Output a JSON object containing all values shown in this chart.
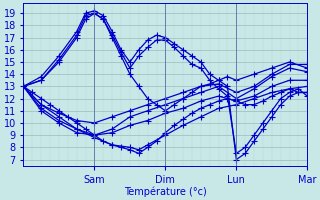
{
  "xlabel": "Température (°c)",
  "yticks": [
    7,
    8,
    9,
    10,
    11,
    12,
    13,
    14,
    15,
    16,
    17,
    18,
    19
  ],
  "ylim": [
    6.5,
    19.8
  ],
  "xlim": [
    0,
    96
  ],
  "x_tick_positions": [
    24,
    48,
    72,
    96
  ],
  "x_tick_labels": [
    "Sam",
    "Dim",
    "Lun",
    "Mar"
  ],
  "bg_color": "#c8e8e8",
  "grid_color_minor": "#b8d0d0",
  "grid_color_major": "#a0b8b8",
  "line_color": "#0000cc",
  "marker": "+",
  "markersize": 4,
  "linewidth": 0.9,
  "curves": [
    [
      0,
      13,
      3,
      12.5,
      6,
      12,
      9,
      11.5,
      12,
      11,
      15,
      10.5,
      18,
      10,
      21,
      9.5,
      24,
      9,
      27,
      8.5,
      30,
      8.2,
      33,
      8.0,
      36,
      7.8,
      39,
      7.5,
      42,
      8.0,
      45,
      8.5,
      48,
      9.2,
      51,
      9.8,
      54,
      10.3,
      57,
      10.8,
      60,
      11.2,
      63,
      11.5,
      66,
      11.8,
      69,
      12.0,
      72,
      11.8,
      75,
      11.5,
      78,
      11.5,
      81,
      11.8,
      84,
      12.2,
      87,
      12.5,
      90,
      12.8,
      93,
      12.5,
      96,
      12.5
    ],
    [
      0,
      13,
      6,
      11.5,
      12,
      10.5,
      18,
      9.5,
      24,
      8.8,
      30,
      8.2,
      36,
      8.0,
      39,
      7.8,
      42,
      8.2,
      48,
      9.0,
      54,
      9.8,
      60,
      10.5,
      66,
      11.2,
      72,
      11.5,
      78,
      12.0,
      84,
      12.5,
      90,
      12.8,
      96,
      13.0
    ],
    [
      0,
      13,
      6,
      11.2,
      12,
      10.2,
      18,
      9.5,
      24,
      9.0,
      30,
      9.2,
      36,
      9.8,
      42,
      10.2,
      48,
      10.8,
      54,
      11.2,
      60,
      11.8,
      66,
      12.2,
      72,
      11.8,
      78,
      12.2,
      84,
      13.0,
      90,
      13.5,
      96,
      13.5
    ],
    [
      0,
      13,
      6,
      11.0,
      12,
      10.0,
      18,
      9.2,
      24,
      9.0,
      30,
      9.5,
      36,
      10.5,
      42,
      11.0,
      48,
      11.5,
      54,
      12.0,
      60,
      12.5,
      66,
      13.0,
      72,
      12.0,
      78,
      12.8,
      84,
      13.8,
      90,
      14.5,
      96,
      14.2
    ],
    [
      0,
      13,
      6,
      11.5,
      12,
      10.8,
      18,
      10.2,
      24,
      10.0,
      30,
      10.5,
      36,
      11.0,
      42,
      11.5,
      48,
      12.0,
      54,
      12.5,
      60,
      13.0,
      66,
      13.2,
      72,
      12.5,
      78,
      13.0,
      84,
      14.0,
      90,
      14.8,
      96,
      14.8
    ],
    [
      0,
      13,
      6,
      13.5,
      12,
      15.0,
      18,
      17.0,
      21,
      18.5,
      24,
      19.0,
      27,
      18.5,
      30,
      17.0,
      33,
      15.5,
      36,
      14.0,
      39,
      13.0,
      42,
      12.0,
      45,
      11.5,
      48,
      11.0,
      51,
      11.5,
      54,
      12.0,
      57,
      12.5,
      60,
      13.0,
      63,
      13.2,
      66,
      13.5,
      69,
      13.8,
      72,
      13.5,
      78,
      14.0,
      84,
      14.5,
      90,
      15.0,
      96,
      14.5
    ],
    [
      0,
      13,
      6,
      13.8,
      12,
      15.5,
      18,
      17.5,
      21,
      19.0,
      24,
      19.2,
      27,
      18.8,
      30,
      17.5,
      33,
      16.0,
      36,
      15.0,
      39,
      16.0,
      42,
      16.8,
      45,
      17.2,
      48,
      17.0,
      51,
      16.5,
      54,
      16.0,
      57,
      15.5,
      60,
      15.0,
      63,
      14.0,
      66,
      13.5,
      69,
      13.0,
      72,
      7.0,
      75,
      7.5,
      78,
      8.5,
      81,
      9.5,
      84,
      10.5,
      87,
      11.5,
      90,
      12.2,
      93,
      12.5,
      96,
      12.5
    ],
    [
      0,
      13,
      6,
      13.5,
      12,
      15.2,
      18,
      17.2,
      21,
      18.8,
      24,
      19.0,
      27,
      18.5,
      30,
      17.2,
      33,
      15.8,
      36,
      14.5,
      39,
      15.5,
      42,
      16.2,
      45,
      16.8,
      48,
      16.8,
      51,
      16.2,
      54,
      15.5,
      57,
      14.8,
      60,
      14.5,
      63,
      13.5,
      66,
      12.8,
      69,
      12.2,
      72,
      7.5,
      75,
      8.0,
      78,
      9.0,
      81,
      10.0,
      84,
      11.0,
      87,
      12.0,
      90,
      12.5,
      93,
      12.8,
      96,
      12.2
    ]
  ]
}
